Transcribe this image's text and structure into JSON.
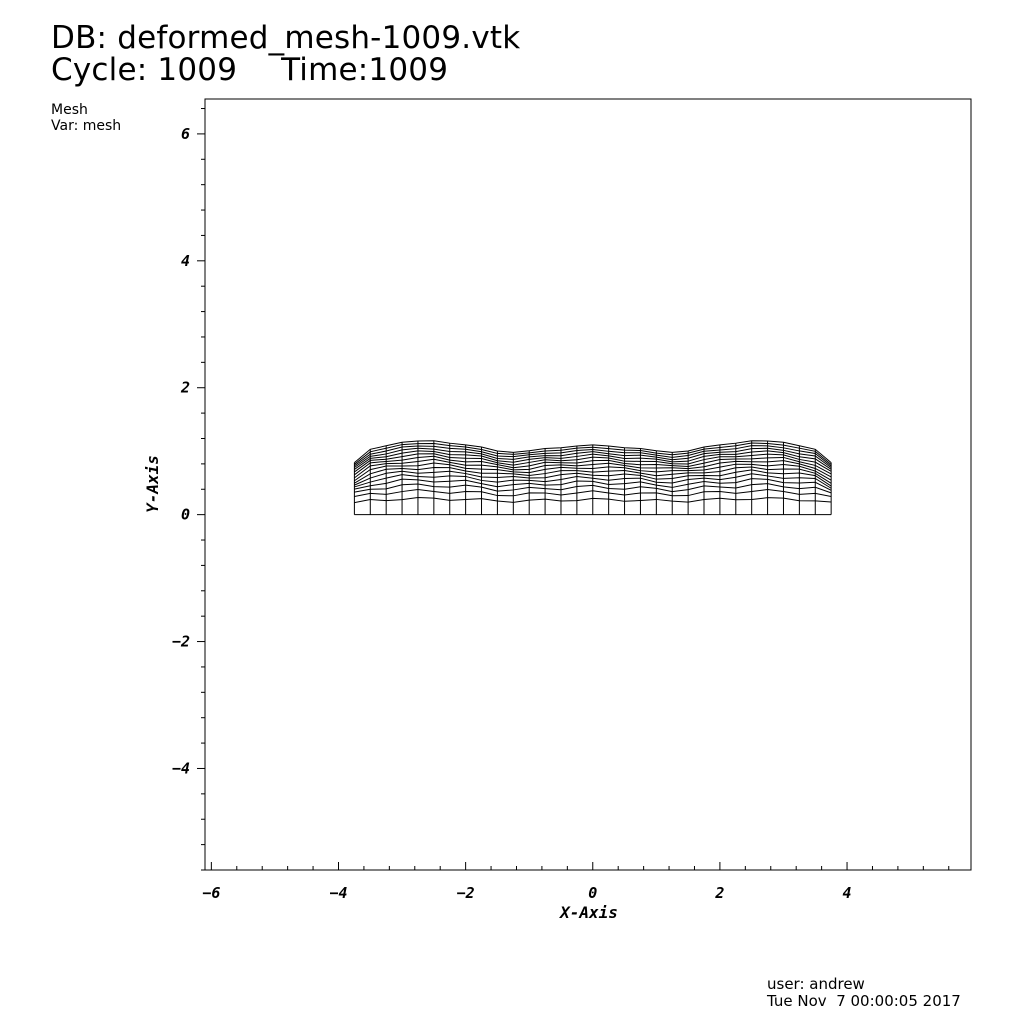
{
  "header": {
    "db_title": "DB: deformed_mesh-1009.vtk",
    "cycle": "Cycle: 1009",
    "time": "Time:1009"
  },
  "legend": {
    "plot_name": "Mesh",
    "var": "Var: mesh"
  },
  "footer": {
    "user": "user: andrew",
    "date": "Tue Nov  7 00:00:05 2017"
  },
  "chart_data": {
    "type": "mesh",
    "xlabel": "X-Axis",
    "ylabel": "Y-Axis",
    "xlim": [
      -6.1,
      5.95
    ],
    "ylim": [
      -5.6,
      6.55
    ],
    "x_ticks": [
      -6,
      -4,
      -2,
      0,
      2,
      4
    ],
    "y_ticks": [
      -4,
      -2,
      0,
      2,
      4,
      6
    ],
    "mesh": {
      "x_range": [
        -3.75,
        3.75
      ],
      "bottom_y": 0,
      "columns": 30,
      "rows": 16,
      "top_profile": {
        "x": [
          -3.75,
          -3.5,
          -3.0,
          -2.6,
          -2.0,
          -1.3,
          -0.6,
          0,
          0.6,
          1.3,
          2.0,
          2.6,
          3.0,
          3.5,
          3.75
        ],
        "y": [
          0.82,
          1.03,
          1.14,
          1.17,
          1.1,
          0.98,
          1.05,
          1.1,
          1.05,
          0.98,
          1.1,
          1.17,
          1.14,
          1.03,
          0.82
        ]
      }
    },
    "colors": {
      "lines": "#000000",
      "background": "#ffffff"
    }
  }
}
